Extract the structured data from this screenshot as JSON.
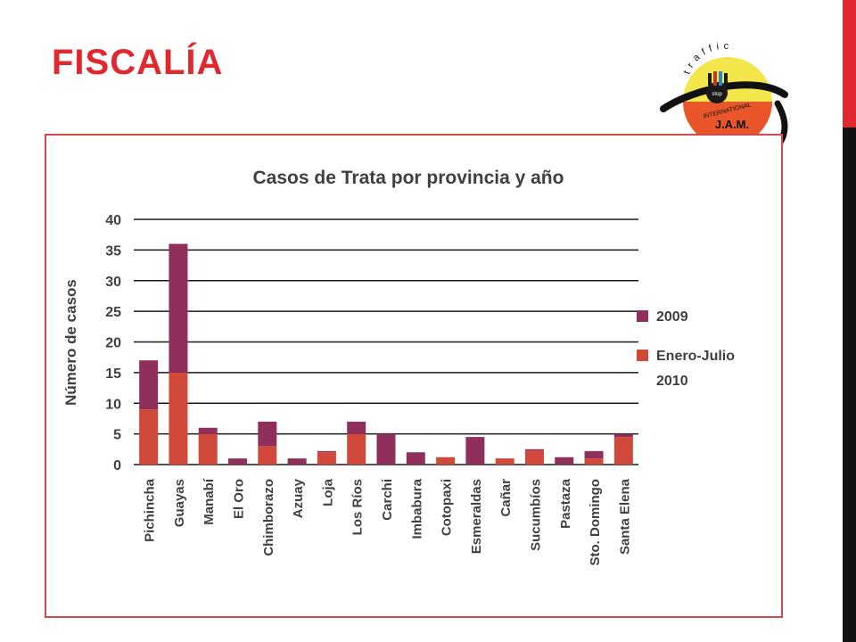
{
  "slide": {
    "title": "FISCALÍA"
  },
  "logo": {
    "arc_text": "traffic",
    "ribbon_text": "INTERNATIONAL",
    "center_text": "stop",
    "name_text": "J.A.M.",
    "colors": {
      "yellow": "#f3e64a",
      "orange": "#e8562a",
      "black": "#111111"
    }
  },
  "colors": {
    "accent_red": "#e0282e",
    "frame_border": "#d24a4e",
    "series_2009": "#8e2f5c",
    "series_2010": "#d1493a",
    "grid": "#1a1a1a",
    "text": "#404040"
  },
  "chart_data": {
    "type": "bar",
    "stacked": true,
    "title": "Casos de Trata por provincia y año",
    "xlabel": "",
    "ylabel": "Número de casos",
    "ylim": [
      0,
      40
    ],
    "yticks": [
      0,
      5,
      10,
      15,
      20,
      25,
      30,
      35,
      40
    ],
    "grid": true,
    "legend_position": "right",
    "categories": [
      "Pichincha",
      "Guayas",
      "Manabí",
      "El Oro",
      "Chimborazo",
      "Azuay",
      "Loja",
      "Los Ríos",
      "Carchi",
      "Imbabura",
      "Cotopaxi",
      "Esmeraldas",
      "Cañar",
      "Sucumbíos",
      "Pastaza",
      "Sto. Domingo",
      "Santa Elena"
    ],
    "series": [
      {
        "name": "Enero-Julio 2010",
        "legend_lines": [
          "Enero-Julio",
          "2010"
        ],
        "color": "#d1493a",
        "values": [
          9,
          15,
          5,
          0,
          3,
          0,
          2,
          5,
          0,
          0,
          1.2,
          0,
          1,
          2.3,
          0,
          1,
          4.5
        ]
      },
      {
        "name": "2009",
        "legend_lines": [
          "2009"
        ],
        "color": "#8e2f5c",
        "values": [
          8,
          21,
          1,
          1,
          4,
          1,
          0.2,
          2,
          5,
          2,
          0,
          4.5,
          0,
          0.2,
          1.2,
          1.2,
          0.5
        ]
      }
    ]
  }
}
